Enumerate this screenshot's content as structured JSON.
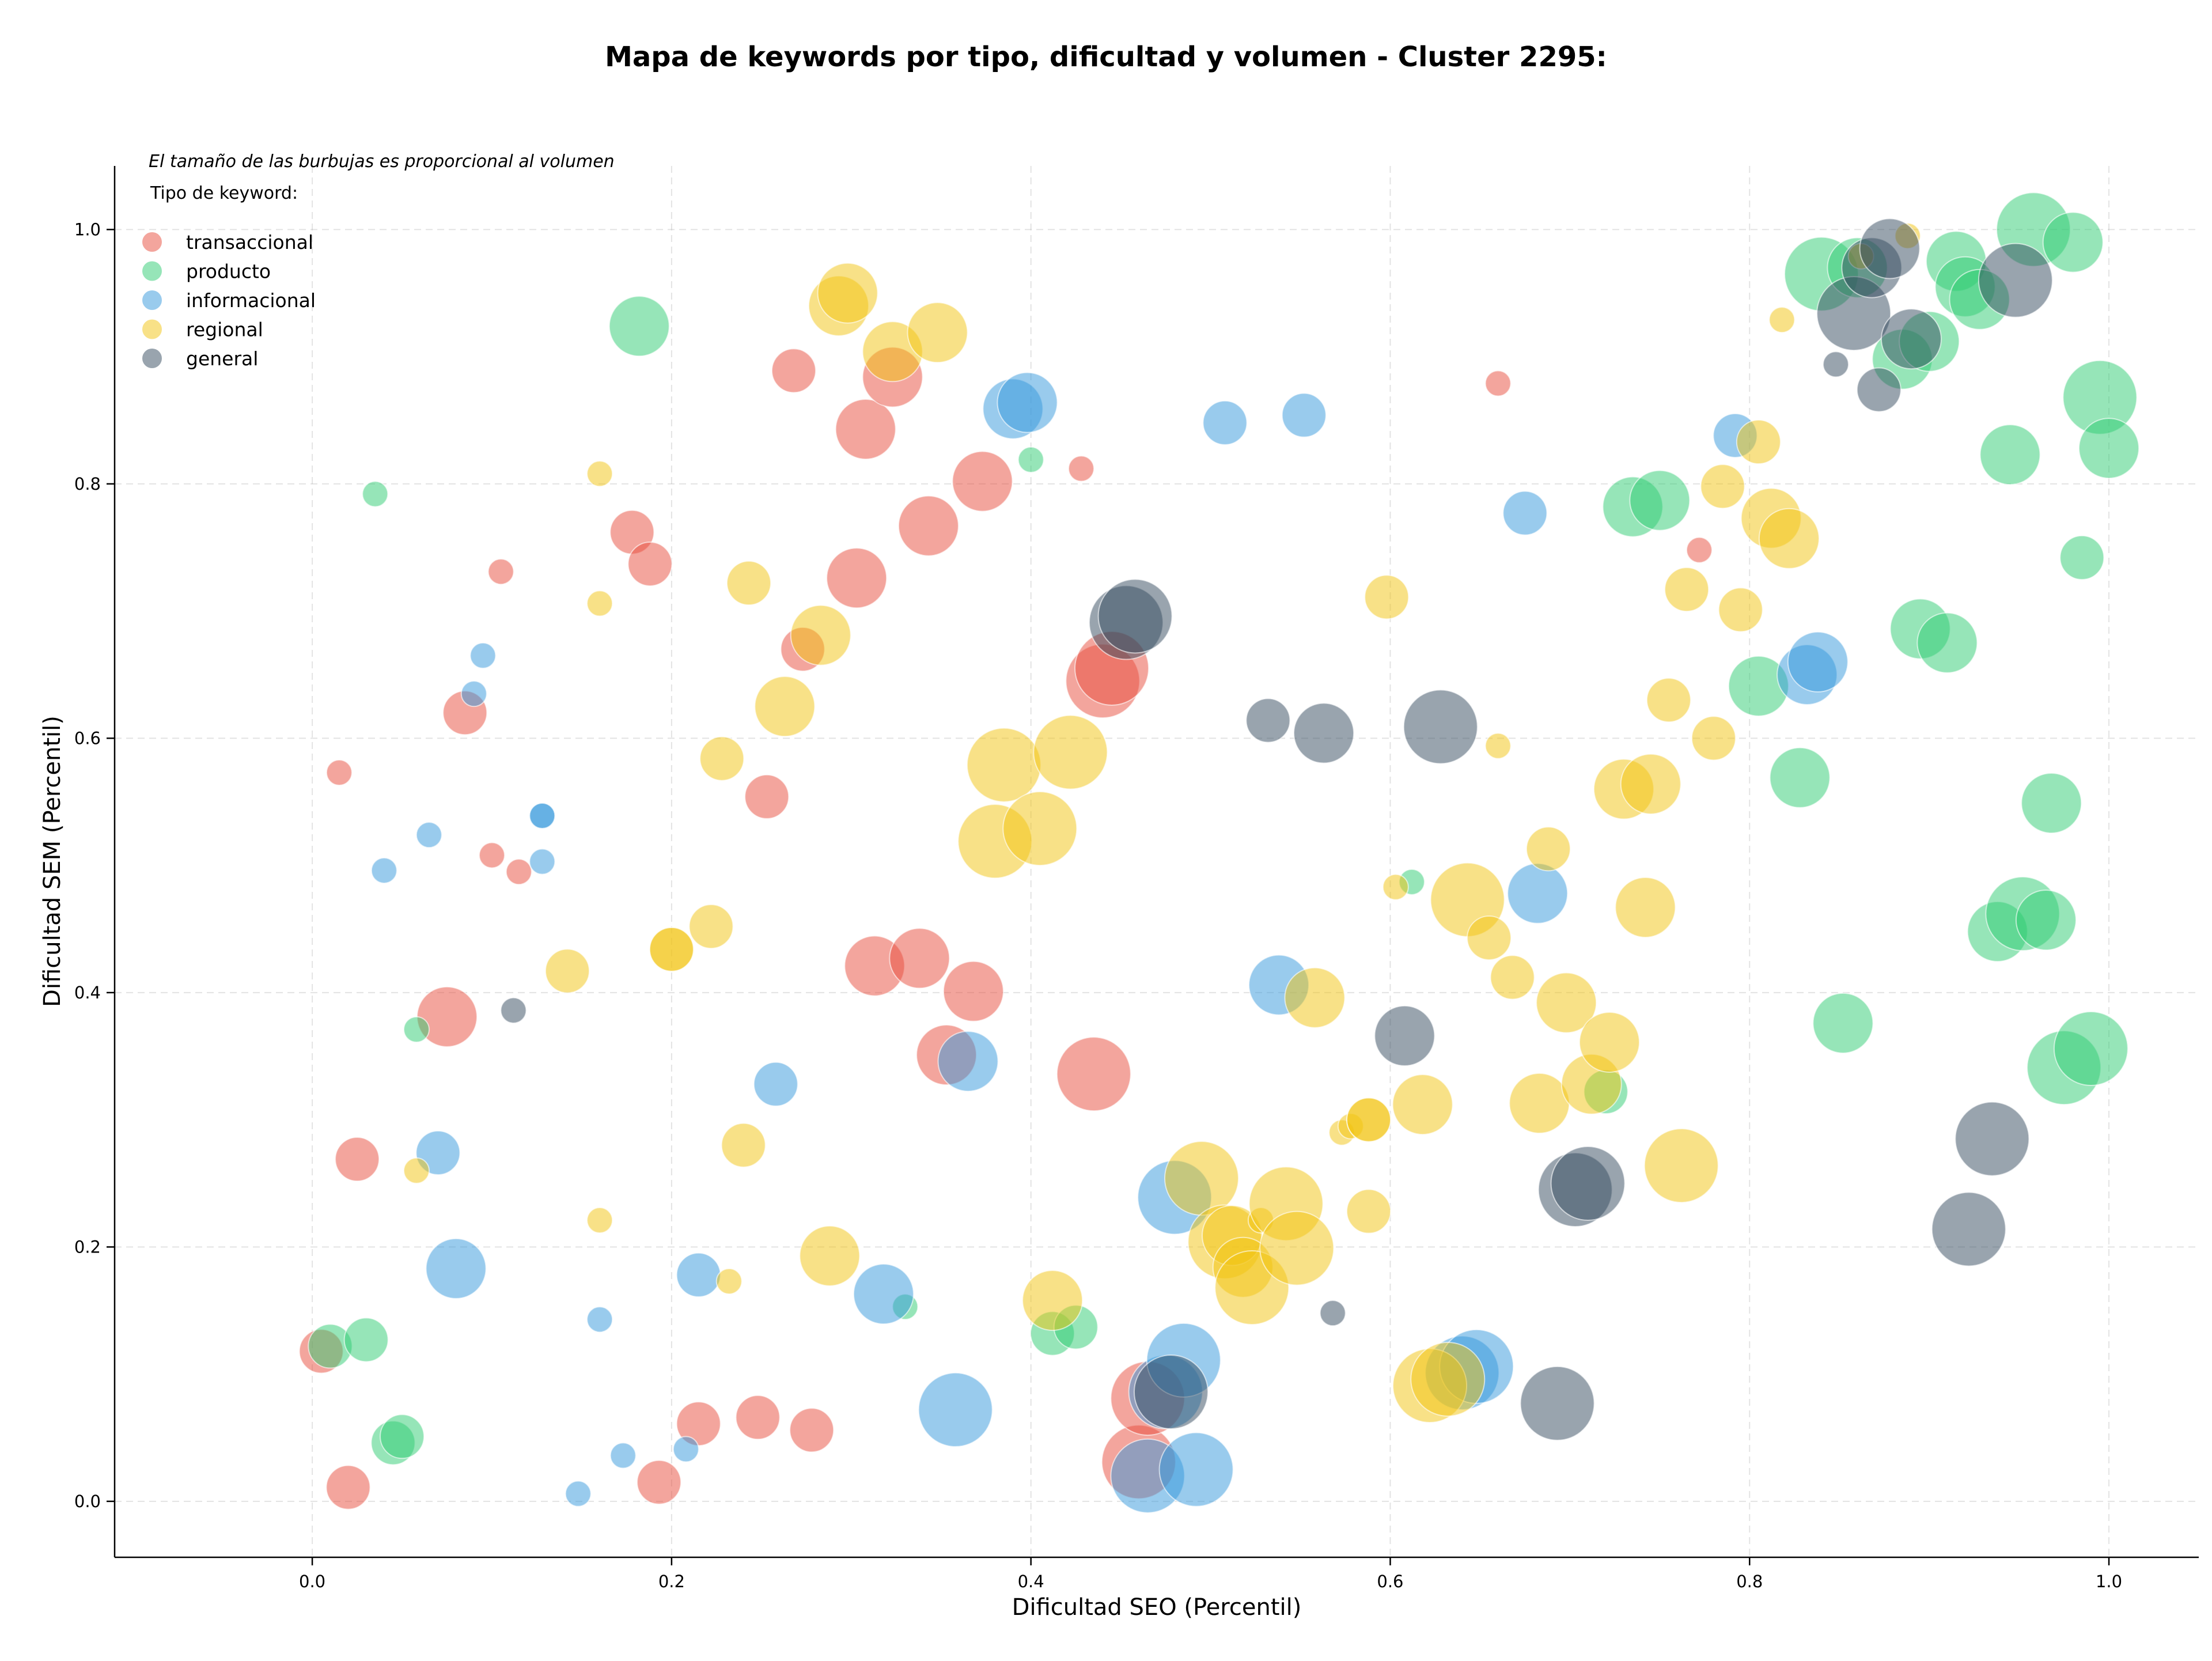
{
  "chart_data": {
    "type": "scatter",
    "title": "Mapa de keywords por tipo, dificultad y volumen - Cluster 2295:",
    "xlabel": "Dificultad SEO (Percentil)",
    "ylabel": "Dificultad SEM (Percentil)",
    "xlim": [
      -0.11,
      1.05
    ],
    "ylim": [
      -0.044,
      1.05
    ],
    "xticks": [
      0.0,
      0.2,
      0.4,
      0.6,
      0.8,
      1.0
    ],
    "yticks": [
      0.0,
      0.2,
      0.4,
      0.6,
      0.8,
      1.0
    ],
    "xtick_labels": [
      "0.0",
      "0.2",
      "0.4",
      "0.6",
      "0.8",
      "1.0"
    ],
    "ytick_labels": [
      "0.0",
      "0.2",
      "0.4",
      "0.6",
      "0.8",
      "1.0"
    ],
    "grid": true,
    "legend_placement": "upper-left",
    "size_note": "El tamaño de las burbujas es proporcional al volumen",
    "legend_title": "Tipo de keyword:",
    "series": [
      {
        "name": "transaccional",
        "color": "#e74c3c",
        "points": [
          [
            0.005,
            0.118,
            2
          ],
          [
            0.015,
            0.573,
            1
          ],
          [
            0.02,
            0.011,
            2
          ],
          [
            0.025,
            0.269,
            2
          ],
          [
            0.075,
            0.381,
            3
          ],
          [
            0.085,
            0.62,
            2
          ],
          [
            0.105,
            0.731,
            1
          ],
          [
            0.1,
            0.508,
            1
          ],
          [
            0.115,
            0.495,
            1
          ],
          [
            0.178,
            0.762,
            2
          ],
          [
            0.188,
            0.737,
            2
          ],
          [
            0.193,
            0.015,
            2
          ],
          [
            0.215,
            0.061,
            2
          ],
          [
            0.248,
            0.066,
            2
          ],
          [
            0.253,
            0.554,
            2
          ],
          [
            0.268,
            0.889,
            2
          ],
          [
            0.273,
            0.67,
            2
          ],
          [
            0.278,
            0.056,
            2
          ],
          [
            0.303,
            0.726,
            3
          ],
          [
            0.308,
            0.843,
            3
          ],
          [
            0.313,
            0.421,
            3
          ],
          [
            0.323,
            0.884,
            3
          ],
          [
            0.338,
            0.427,
            3
          ],
          [
            0.343,
            0.767,
            3
          ],
          [
            0.353,
            0.351,
            3
          ],
          [
            0.368,
            0.401,
            3
          ],
          [
            0.373,
            0.802,
            3
          ],
          [
            0.428,
            0.812,
            1
          ],
          [
            0.435,
            0.336,
            4
          ],
          [
            0.44,
            0.645,
            4
          ],
          [
            0.445,
            0.655,
            4
          ],
          [
            0.46,
            0.031,
            4
          ],
          [
            0.465,
            0.081,
            4
          ],
          [
            0.66,
            0.879,
            1
          ],
          [
            0.772,
            0.748,
            1
          ]
        ]
      },
      {
        "name": "producto",
        "color": "#2ecc71",
        "points": [
          [
            0.01,
            0.122,
            2
          ],
          [
            0.03,
            0.127,
            2
          ],
          [
            0.035,
            0.792,
            1
          ],
          [
            0.045,
            0.046,
            2
          ],
          [
            0.05,
            0.051,
            2
          ],
          [
            0.058,
            0.371,
            1
          ],
          [
            0.182,
            0.924,
            3
          ],
          [
            0.33,
            0.153,
            1
          ],
          [
            0.4,
            0.819,
            1
          ],
          [
            0.412,
            0.132,
            2
          ],
          [
            0.425,
            0.137,
            2
          ],
          [
            0.612,
            0.487,
            1
          ],
          [
            0.72,
            0.322,
            2
          ],
          [
            0.735,
            0.782,
            3
          ],
          [
            0.75,
            0.787,
            3
          ],
          [
            0.805,
            0.641,
            3
          ],
          [
            0.828,
            0.569,
            3
          ],
          [
            0.84,
            0.965,
            4
          ],
          [
            0.852,
            0.376,
            3
          ],
          [
            0.86,
            0.97,
            3
          ],
          [
            0.885,
            0.898,
            3
          ],
          [
            0.895,
            0.686,
            3
          ],
          [
            0.9,
            0.912,
            3
          ],
          [
            0.91,
            0.675,
            3
          ],
          [
            0.915,
            0.975,
            3
          ],
          [
            0.92,
            0.955,
            3
          ],
          [
            0.928,
            0.945,
            3
          ],
          [
            0.938,
            0.448,
            3
          ],
          [
            0.945,
            0.823,
            3
          ],
          [
            0.952,
            0.462,
            4
          ],
          [
            0.958,
            1.0,
            4
          ],
          [
            0.965,
            0.457,
            3
          ],
          [
            0.968,
            0.549,
            3
          ],
          [
            0.975,
            0.341,
            4
          ],
          [
            0.98,
            0.99,
            3
          ],
          [
            0.985,
            0.742,
            2
          ],
          [
            0.99,
            0.356,
            4
          ],
          [
            0.995,
            0.868,
            4
          ],
          [
            1.0,
            0.828,
            3
          ]
        ]
      },
      {
        "name": "informacional",
        "color": "#3498db",
        "points": [
          [
            0.04,
            0.496,
            1
          ],
          [
            0.065,
            0.524,
            1
          ],
          [
            0.07,
            0.274,
            2
          ],
          [
            0.08,
            0.183,
            3
          ],
          [
            0.09,
            0.635,
            1
          ],
          [
            0.095,
            0.665,
            1
          ],
          [
            0.128,
            0.539,
            1
          ],
          [
            0.128,
            0.539,
            1
          ],
          [
            0.128,
            0.503,
            1
          ],
          [
            0.148,
            0.006,
            1
          ],
          [
            0.16,
            0.143,
            1
          ],
          [
            0.173,
            0.036,
            1
          ],
          [
            0.208,
            0.041,
            1
          ],
          [
            0.215,
            0.178,
            2
          ],
          [
            0.258,
            0.328,
            2
          ],
          [
            0.318,
            0.163,
            3
          ],
          [
            0.358,
            0.072,
            4
          ],
          [
            0.365,
            0.346,
            3
          ],
          [
            0.39,
            0.859,
            3
          ],
          [
            0.398,
            0.864,
            3
          ],
          [
            0.465,
            0.02,
            4
          ],
          [
            0.475,
            0.086,
            4
          ],
          [
            0.48,
            0.239,
            4
          ],
          [
            0.485,
            0.111,
            4
          ],
          [
            0.492,
            0.025,
            4
          ],
          [
            0.508,
            0.848,
            2
          ],
          [
            0.538,
            0.406,
            3
          ],
          [
            0.552,
            0.854,
            2
          ],
          [
            0.64,
            0.101,
            4
          ],
          [
            0.648,
            0.106,
            4
          ],
          [
            0.675,
            0.777,
            2
          ],
          [
            0.682,
            0.478,
            3
          ],
          [
            0.792,
            0.838,
            2
          ],
          [
            0.832,
            0.65,
            3
          ],
          [
            0.838,
            0.66,
            3
          ]
        ]
      },
      {
        "name": "regional",
        "color": "#f1c40f",
        "points": [
          [
            0.058,
            0.26,
            1
          ],
          [
            0.142,
            0.417,
            2
          ],
          [
            0.16,
            0.808,
            1
          ],
          [
            0.16,
            0.706,
            1
          ],
          [
            0.16,
            0.221,
            1
          ],
          [
            0.2,
            0.434,
            2
          ],
          [
            0.2,
            0.434,
            2
          ],
          [
            0.222,
            0.452,
            2
          ],
          [
            0.228,
            0.584,
            2
          ],
          [
            0.232,
            0.173,
            1
          ],
          [
            0.24,
            0.28,
            2
          ],
          [
            0.243,
            0.722,
            2
          ],
          [
            0.263,
            0.625,
            3
          ],
          [
            0.283,
            0.681,
            3
          ],
          [
            0.288,
            0.193,
            3
          ],
          [
            0.293,
            0.94,
            3
          ],
          [
            0.298,
            0.95,
            3
          ],
          [
            0.323,
            0.904,
            3
          ],
          [
            0.348,
            0.919,
            3
          ],
          [
            0.38,
            0.519,
            4
          ],
          [
            0.385,
            0.579,
            4
          ],
          [
            0.405,
            0.529,
            4
          ],
          [
            0.412,
            0.158,
            3
          ],
          [
            0.422,
            0.589,
            4
          ],
          [
            0.495,
            0.254,
            4
          ],
          [
            0.508,
            0.204,
            4
          ],
          [
            0.512,
            0.209,
            3
          ],
          [
            0.518,
            0.184,
            3
          ],
          [
            0.523,
            0.168,
            4
          ],
          [
            0.528,
            0.221,
            1
          ],
          [
            0.542,
            0.234,
            4
          ],
          [
            0.548,
            0.199,
            4
          ],
          [
            0.558,
            0.396,
            3
          ],
          [
            0.573,
            0.29,
            1
          ],
          [
            0.578,
            0.295,
            1
          ],
          [
            0.588,
            0.3,
            2
          ],
          [
            0.588,
            0.228,
            2
          ],
          [
            0.588,
            0.3,
            2
          ],
          [
            0.598,
            0.711,
            2
          ],
          [
            0.603,
            0.483,
            1
          ],
          [
            0.618,
            0.312,
            3
          ],
          [
            0.622,
            0.091,
            4
          ],
          [
            0.632,
            0.096,
            4
          ],
          [
            0.66,
            0.594,
            1
          ],
          [
            0.643,
            0.473,
            4
          ],
          [
            0.655,
            0.443,
            2
          ],
          [
            0.668,
            0.412,
            2
          ],
          [
            0.683,
            0.313,
            3
          ],
          [
            0.688,
            0.513,
            2
          ],
          [
            0.698,
            0.392,
            3
          ],
          [
            0.712,
            0.328,
            3
          ],
          [
            0.722,
            0.361,
            3
          ],
          [
            0.73,
            0.56,
            3
          ],
          [
            0.742,
            0.467,
            3
          ],
          [
            0.745,
            0.564,
            3
          ],
          [
            0.755,
            0.63,
            2
          ],
          [
            0.762,
            0.264,
            4
          ],
          [
            0.765,
            0.717,
            2
          ],
          [
            0.78,
            0.6,
            2
          ],
          [
            0.785,
            0.798,
            2
          ],
          [
            0.795,
            0.701,
            2
          ],
          [
            0.805,
            0.833,
            2
          ],
          [
            0.812,
            0.773,
            3
          ],
          [
            0.818,
            0.929,
            1
          ],
          [
            0.822,
            0.757,
            3
          ],
          [
            0.862,
            0.979,
            1
          ],
          [
            0.888,
            0.995,
            1
          ]
        ]
      },
      {
        "name": "general",
        "color": "#34495e",
        "points": [
          [
            0.112,
            0.386,
            1
          ],
          [
            0.453,
            0.691,
            4
          ],
          [
            0.458,
            0.696,
            4
          ],
          [
            0.478,
            0.086,
            4
          ],
          [
            0.532,
            0.614,
            2
          ],
          [
            0.563,
            0.604,
            3
          ],
          [
            0.568,
            0.148,
            1
          ],
          [
            0.608,
            0.366,
            3
          ],
          [
            0.628,
            0.609,
            4
          ],
          [
            0.693,
            0.077,
            4
          ],
          [
            0.703,
            0.245,
            4
          ],
          [
            0.71,
            0.25,
            4
          ],
          [
            0.848,
            0.894,
            1
          ],
          [
            0.858,
            0.934,
            4
          ],
          [
            0.868,
            0.97,
            3
          ],
          [
            0.872,
            0.874,
            2
          ],
          [
            0.878,
            0.985,
            3
          ],
          [
            0.89,
            0.914,
            3
          ],
          [
            0.922,
            0.214,
            4
          ],
          [
            0.935,
            0.285,
            4
          ],
          [
            0.948,
            0.96,
            4
          ]
        ]
      }
    ]
  }
}
